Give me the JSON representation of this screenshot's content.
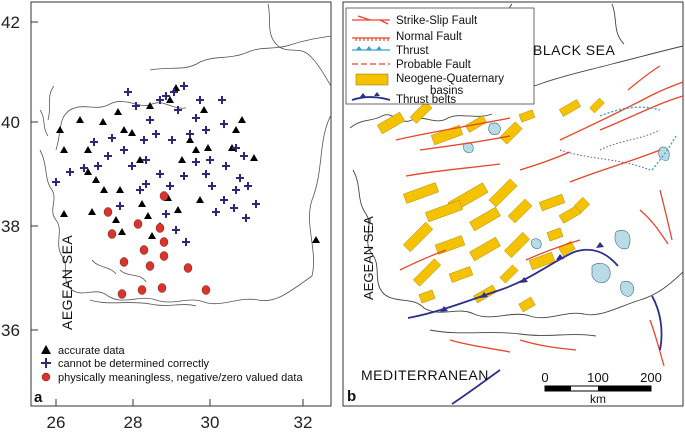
{
  "panel_a": {
    "label": "a",
    "x_ticks": [
      "26",
      "28",
      "30",
      "32"
    ],
    "y_ticks": [
      "42",
      "40",
      "38",
      "36"
    ],
    "sea_label": "AEGEAN SEA",
    "legend": {
      "accurate": "accurate data",
      "cannot": "cannot be determined correctly",
      "meaningless": "physically meaningless, negative/zero valued data"
    },
    "colors": {
      "triangle": "#000000",
      "cross": "#2b2a78",
      "circle": "#d9342b"
    }
  },
  "panel_b": {
    "label": "b",
    "legend": {
      "strike_slip": "Strike-Slip Fault",
      "normal": "Normal Fault",
      "thrust": "Thrust",
      "probable": "Probable Fault",
      "basins_1": "Neogene-Quaternary",
      "basins_2": "basins",
      "thrust_belts": "Thrust belts"
    },
    "labels": {
      "black_sea": "BLACK SEA",
      "aegean_sea": "AEGEAN SEA",
      "mediterranean": "MEDITERRANEAN"
    },
    "scale": {
      "ticks": [
        "0",
        "100",
        "200"
      ],
      "unit": "km"
    },
    "colors": {
      "fault": "#e8452a",
      "basin": "#f5c200",
      "thrust": "#3aa0c8",
      "thrust_belt": "#2b2f8c",
      "lake": "#b9dbe6"
    }
  }
}
